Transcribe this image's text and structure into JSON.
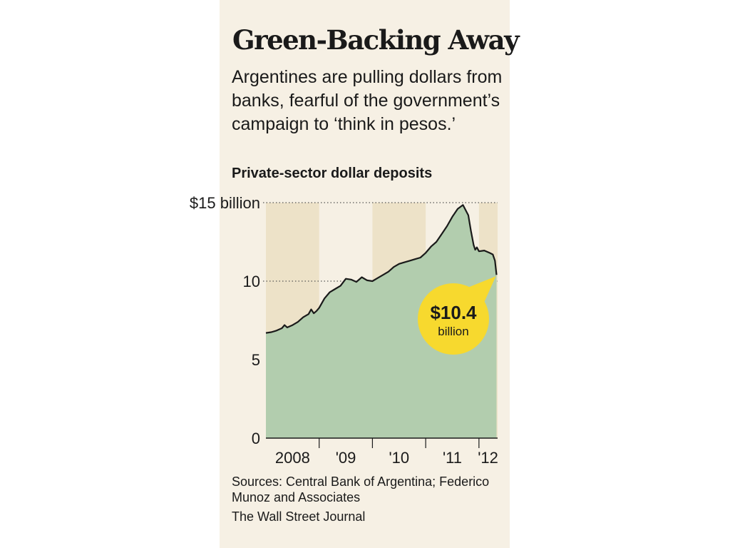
{
  "chart_data": {
    "type": "area",
    "title": "Green-Backing Away",
    "subtitle": "Argentines are pulling dollars from banks, fearful of the government’s campaign to ‘think in pesos.’",
    "series_label": "Private-sector dollar deposits",
    "y_unit": "billion",
    "ylim": [
      0,
      15
    ],
    "yticks": [
      {
        "value": 15,
        "label": "$15 billion"
      },
      {
        "value": 10,
        "label": "10"
      },
      {
        "value": 5,
        "label": "5"
      },
      {
        "value": 0,
        "label": "0"
      }
    ],
    "xlim": [
      2008.0,
      2012.35
    ],
    "xticks": [
      {
        "value": 2008.5,
        "label": "2008"
      },
      {
        "value": 2009.5,
        "label": "'09"
      },
      {
        "value": 2010.5,
        "label": "'10"
      },
      {
        "value": 2011.5,
        "label": "'11"
      },
      {
        "value": 2012.17,
        "label": "'12"
      }
    ],
    "shaded_years": [
      [
        2008,
        2009
      ],
      [
        2010,
        2011
      ],
      [
        2012,
        2012.35
      ]
    ],
    "gridlines_dotted": [
      15,
      10
    ],
    "colors": {
      "area": "#b2cdae",
      "line": "#1a1a1a",
      "band": "#ede2c8",
      "panel": "#f6f0e4",
      "callout": "#f7d92e"
    },
    "series": [
      {
        "x": [
          2008.0,
          2008.1,
          2008.2,
          2008.3,
          2008.35,
          2008.4,
          2008.5,
          2008.6,
          2008.7,
          2008.8,
          2008.85,
          2008.9,
          2008.95,
          2009.0,
          2009.1,
          2009.2,
          2009.3,
          2009.4,
          2009.5,
          2009.6,
          2009.7,
          2009.8,
          2009.9,
          2010.0,
          2010.1,
          2010.2,
          2010.3,
          2010.4,
          2010.5,
          2010.6,
          2010.7,
          2010.8,
          2010.9,
          2011.0,
          2011.1,
          2011.2,
          2011.3,
          2011.4,
          2011.5,
          2011.6,
          2011.7,
          2011.8,
          2011.85,
          2011.9,
          2011.93,
          2011.96,
          2012.0,
          2012.1,
          2012.2,
          2012.26,
          2012.3,
          2012.33
        ],
        "values": [
          6.7,
          6.75,
          6.85,
          7.0,
          7.2,
          7.05,
          7.2,
          7.4,
          7.7,
          7.9,
          8.2,
          7.95,
          8.1,
          8.3,
          8.9,
          9.3,
          9.5,
          9.7,
          10.15,
          10.1,
          9.95,
          10.25,
          10.05,
          10.0,
          10.2,
          10.4,
          10.6,
          10.9,
          11.1,
          11.2,
          11.3,
          11.4,
          11.5,
          11.8,
          12.2,
          12.5,
          13.0,
          13.5,
          14.1,
          14.6,
          14.85,
          14.2,
          13.2,
          12.3,
          12.0,
          12.15,
          11.9,
          11.95,
          11.8,
          11.7,
          11.3,
          10.4
        ]
      }
    ],
    "annotation": {
      "value_label": "$10.4",
      "unit_label": "billion",
      "x": 2012.33,
      "y": 10.4
    }
  },
  "source_text": "Sources: Central Bank of Argentina; Federico Munoz and Associates",
  "credit": "The Wall Street Journal"
}
